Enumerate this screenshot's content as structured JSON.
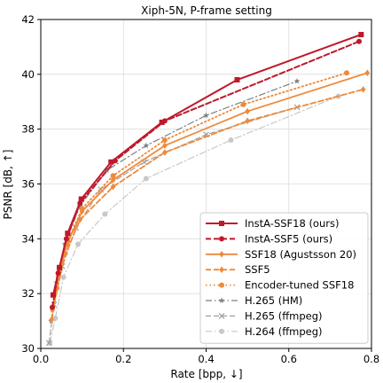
{
  "chart_data": {
    "type": "line",
    "title": "Xiph-5N, P-frame setting",
    "xlabel": "Rate [bpp, ↓]",
    "ylabel": "PSNR [dB, ↑]",
    "xlim": [
      0.0,
      0.8
    ],
    "ylim": [
      30,
      42
    ],
    "xticks": [
      0.0,
      0.2,
      0.4,
      0.6,
      0.8
    ],
    "xtick_labels": [
      "0.0",
      "0.2",
      "0.4",
      "0.6",
      "0.8"
    ],
    "yticks": [
      30,
      32,
      34,
      36,
      38,
      40,
      42
    ],
    "ytick_labels": [
      "30",
      "32",
      "34",
      "36",
      "38",
      "40",
      "42"
    ],
    "grid": true,
    "legend_position": "bottom-right",
    "series": [
      {
        "name": "InstA-SSF18 (ours)",
        "color": "#c0182b",
        "style": "solid",
        "marker": "square",
        "width": 2,
        "x": [
          0.03,
          0.045,
          0.065,
          0.098,
          0.17,
          0.293,
          0.475,
          0.775
        ],
        "y": [
          31.95,
          32.95,
          34.2,
          35.45,
          36.8,
          38.25,
          39.8,
          41.45
        ]
      },
      {
        "name": "InstA-SSF5 (ours)",
        "color": "#c0182b",
        "style": "dashed",
        "marker": "circle",
        "width": 2,
        "x": [
          0.028,
          0.042,
          0.062,
          0.095,
          0.18,
          0.3,
          0.77
        ],
        "y": [
          31.5,
          32.75,
          34.0,
          35.3,
          36.85,
          38.3,
          41.2
        ]
      },
      {
        "name": "SSF18 (Agustsson 20)",
        "color": "#ee8a3a",
        "style": "solid",
        "marker": "diamond",
        "width": 1.8,
        "x": [
          0.028,
          0.042,
          0.063,
          0.1,
          0.175,
          0.3,
          0.5,
          0.79
        ],
        "y": [
          31.4,
          32.6,
          33.8,
          35.0,
          36.15,
          37.4,
          38.65,
          40.05
        ]
      },
      {
        "name": "SSF5",
        "color": "#ee8a3a",
        "style": "dashed",
        "marker": "diamond",
        "width": 1.8,
        "x": [
          0.026,
          0.04,
          0.06,
          0.095,
          0.175,
          0.3,
          0.5,
          0.78
        ],
        "y": [
          31.05,
          32.2,
          33.45,
          34.7,
          35.9,
          37.15,
          38.3,
          39.45
        ]
      },
      {
        "name": "Encoder-tuned SSF18",
        "color": "#ee8a3a",
        "style": "dotted",
        "marker": "circle",
        "width": 1.8,
        "x": [
          0.028,
          0.043,
          0.065,
          0.1,
          0.175,
          0.3,
          0.49,
          0.74
        ],
        "y": [
          31.5,
          32.7,
          33.9,
          35.1,
          36.3,
          37.6,
          38.9,
          40.05
        ]
      },
      {
        "name": "H.265 (HM)",
        "color": "#808080",
        "style": "dashdot",
        "marker": "star",
        "width": 1.2,
        "x": [
          0.025,
          0.038,
          0.058,
          0.095,
          0.16,
          0.255,
          0.4,
          0.62
        ],
        "y": [
          31.0,
          32.4,
          33.8,
          35.2,
          36.5,
          37.4,
          38.5,
          39.75
        ]
      },
      {
        "name": "H.265 (ffmpeg)",
        "color": "#a0a0a0",
        "style": "dashed",
        "marker": "x",
        "width": 1.2,
        "x": [
          0.02,
          0.032,
          0.052,
          0.085,
          0.145,
          0.25,
          0.4,
          0.62
        ],
        "y": [
          30.2,
          31.6,
          33.0,
          34.4,
          35.8,
          36.8,
          37.8,
          38.8
        ]
      },
      {
        "name": "H.264 (ffmpeg)",
        "color": "#c8c8c8",
        "style": "dashdot",
        "marker": "circle",
        "width": 1.2,
        "x": [
          0.022,
          0.035,
          0.055,
          0.09,
          0.155,
          0.255,
          0.46,
          0.72
        ],
        "y": [
          30.2,
          31.1,
          32.6,
          33.8,
          34.9,
          36.2,
          37.6,
          39.2
        ]
      }
    ]
  }
}
